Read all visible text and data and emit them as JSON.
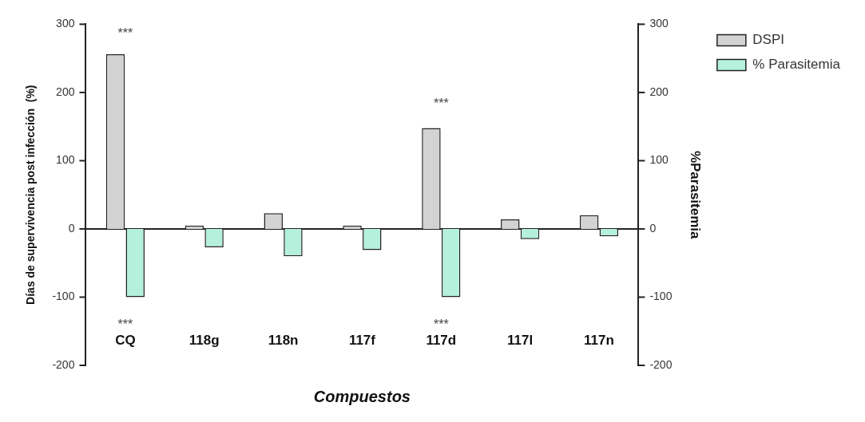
{
  "chart_data": {
    "type": "bar",
    "categories": [
      "CQ",
      "118g",
      "118n",
      "117f",
      "117d",
      "117l",
      "117n"
    ],
    "series": [
      {
        "name": "DSPI",
        "color": "#d3d3d3",
        "values": [
          256,
          5,
          23,
          5,
          148,
          14,
          20
        ]
      },
      {
        "name": "% Parasitemia",
        "color": "#b5f0dc",
        "axis": "y2",
        "values": [
          -100,
          -27,
          -40,
          -31,
          -100,
          -15,
          -11
        ]
      }
    ],
    "xlabel": "Compuestos",
    "ylabel": "Días de supervivencia post infección  (%)",
    "y2label": "%Parasitemia",
    "ylim": [
      -200,
      300
    ],
    "yticks": [
      -200,
      -100,
      0,
      100,
      200,
      300
    ],
    "y2lim": [
      -200,
      300
    ],
    "y2ticks": [
      -200,
      -100,
      0,
      100,
      200,
      300
    ],
    "annotations": [
      "***",
      "***",
      "***",
      "***"
    ],
    "legend": "top right"
  }
}
